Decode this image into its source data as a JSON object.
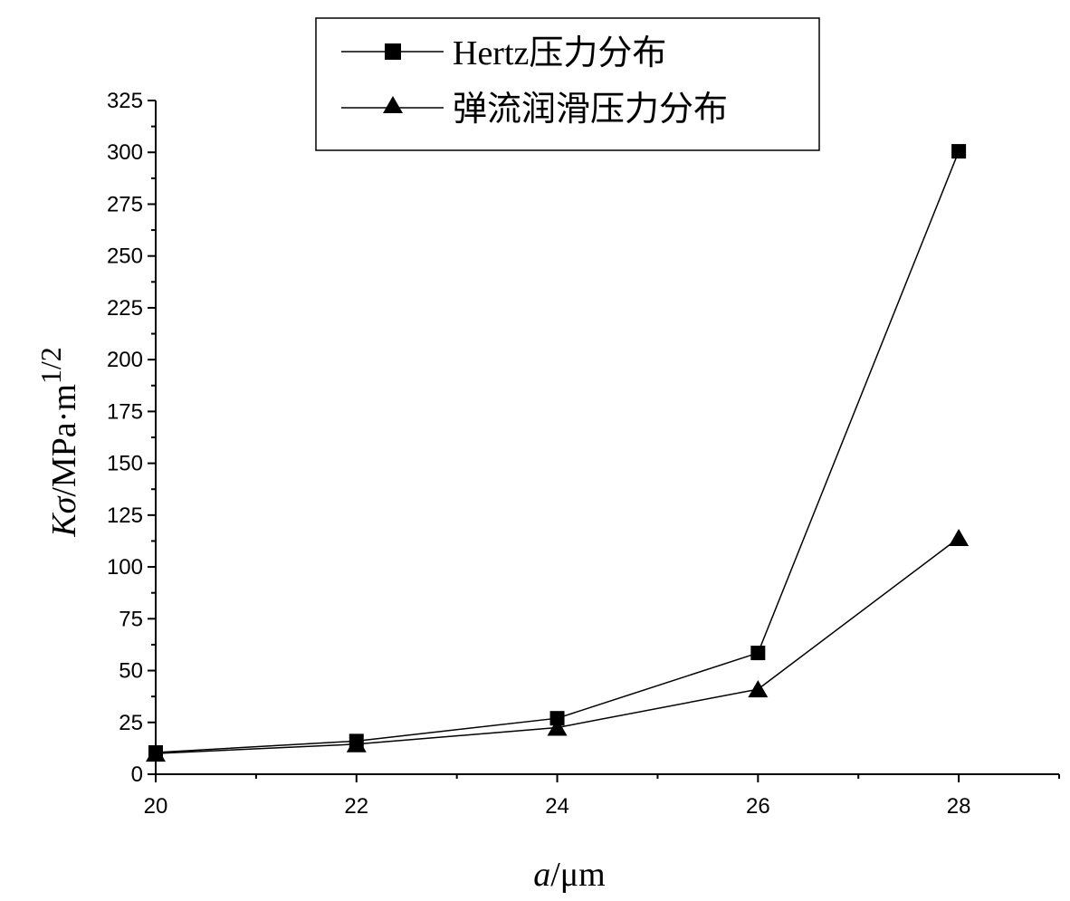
{
  "chart_data": {
    "type": "line",
    "x": [
      20,
      22,
      24,
      26,
      28
    ],
    "series": [
      {
        "name": "Hertz压力分布",
        "marker": "square",
        "values": [
          10.5,
          16,
          27,
          58.5,
          300.5
        ]
      },
      {
        "name": "弹流润滑压力分布",
        "marker": "triangle",
        "values": [
          10,
          14.5,
          22.5,
          41,
          114
        ]
      }
    ],
    "xlabel": {
      "italic": "a",
      "rest": "/μm"
    },
    "ylabel": {
      "italic": "Kσ",
      "rest": "/MPa·m",
      "superscript": "1/2"
    },
    "xlim": [
      20,
      29
    ],
    "ylim": [
      0,
      325
    ],
    "xticks": [
      "20",
      "22",
      "24",
      "26",
      "28"
    ],
    "yticks": [
      "0",
      "25",
      "50",
      "75",
      "100",
      "125",
      "150",
      "175",
      "200",
      "225",
      "250",
      "275",
      "300",
      "325"
    ],
    "legend_position": "top-right",
    "grid": false,
    "line_color": "#000000",
    "marker_color": "#000000"
  }
}
